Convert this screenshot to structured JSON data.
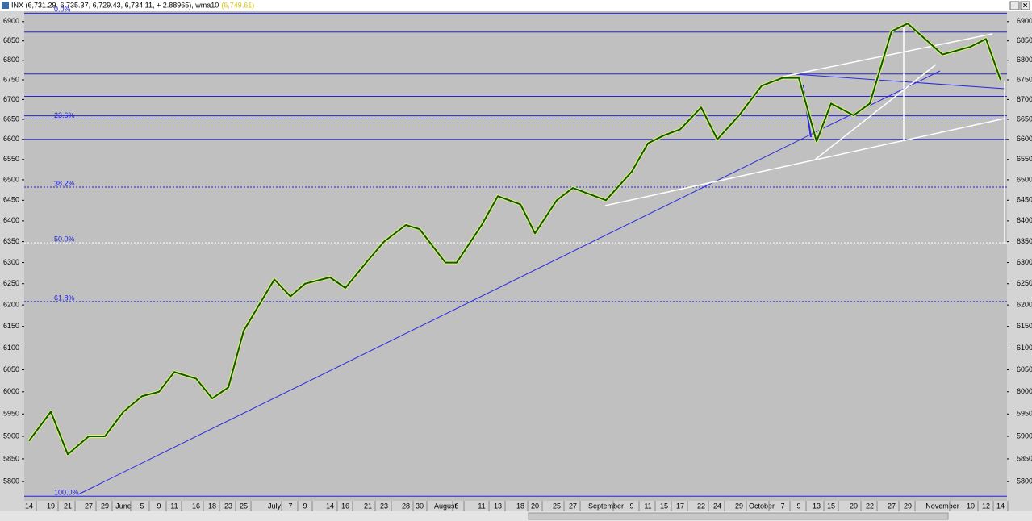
{
  "chart_data": {
    "type": "line",
    "title": "INX (6,731.29, 6,735.37, 6,729.43, 6,734.11, + 2.88965), wma10",
    "title_value": "(6,749.61)",
    "categories": [
      "14",
      "19",
      "21",
      "27",
      "29",
      "June",
      "5",
      "9",
      "11",
      "16",
      "18",
      "23",
      "25",
      "July",
      "7",
      "9",
      "14",
      "16",
      "21",
      "23",
      "28",
      "30",
      "August",
      "6",
      "11",
      "13",
      "18",
      "20",
      "25",
      "27",
      "September",
      "9",
      "11",
      "15",
      "17",
      "22",
      "24",
      "29",
      "October",
      "7",
      "9",
      "13",
      "15",
      "20",
      "22",
      "27",
      "29",
      "November",
      "10",
      "12",
      "14"
    ],
    "values": [
      5890,
      5955,
      5860,
      5900,
      5900,
      5955,
      5990,
      6000,
      6045,
      6030,
      5985,
      6010,
      6140,
      6260,
      6220,
      6250,
      6265,
      6240,
      6305,
      6350,
      6390,
      6380,
      6300,
      6300,
      6390,
      6460,
      6440,
      6370,
      6450,
      6480,
      6450,
      6520,
      6590,
      6610,
      6625,
      6680,
      6600,
      6660,
      6735,
      6755,
      6755,
      6595,
      6690,
      6660,
      6690,
      6875,
      6895,
      6815,
      6835,
      6855,
      6750
    ],
    "color": "#0b5a0b",
    "log": true,
    "ylim": [
      5758,
      6927
    ],
    "yticks": [
      5800,
      5850,
      5900,
      5950,
      6000,
      6050,
      6100,
      6150,
      6200,
      6250,
      6300,
      6350,
      6400,
      6450,
      6500,
      6550,
      6600,
      6650,
      6700,
      6750,
      6800,
      6850,
      6900
    ],
    "fib_levels": [
      {
        "value": 6922,
        "label": "0.0%"
      },
      {
        "value": 6651,
        "label": "23.6%"
      },
      {
        "value": 6482,
        "label": "38.2%"
      },
      {
        "value": 6347,
        "label": "50.0%"
      },
      {
        "value": 6208,
        "label": "61.8%"
      },
      {
        "value": 5768,
        "label": "100.0%"
      }
    ],
    "hlines": [
      6873,
      6765,
      6708,
      6659,
      6600
    ]
  }
}
